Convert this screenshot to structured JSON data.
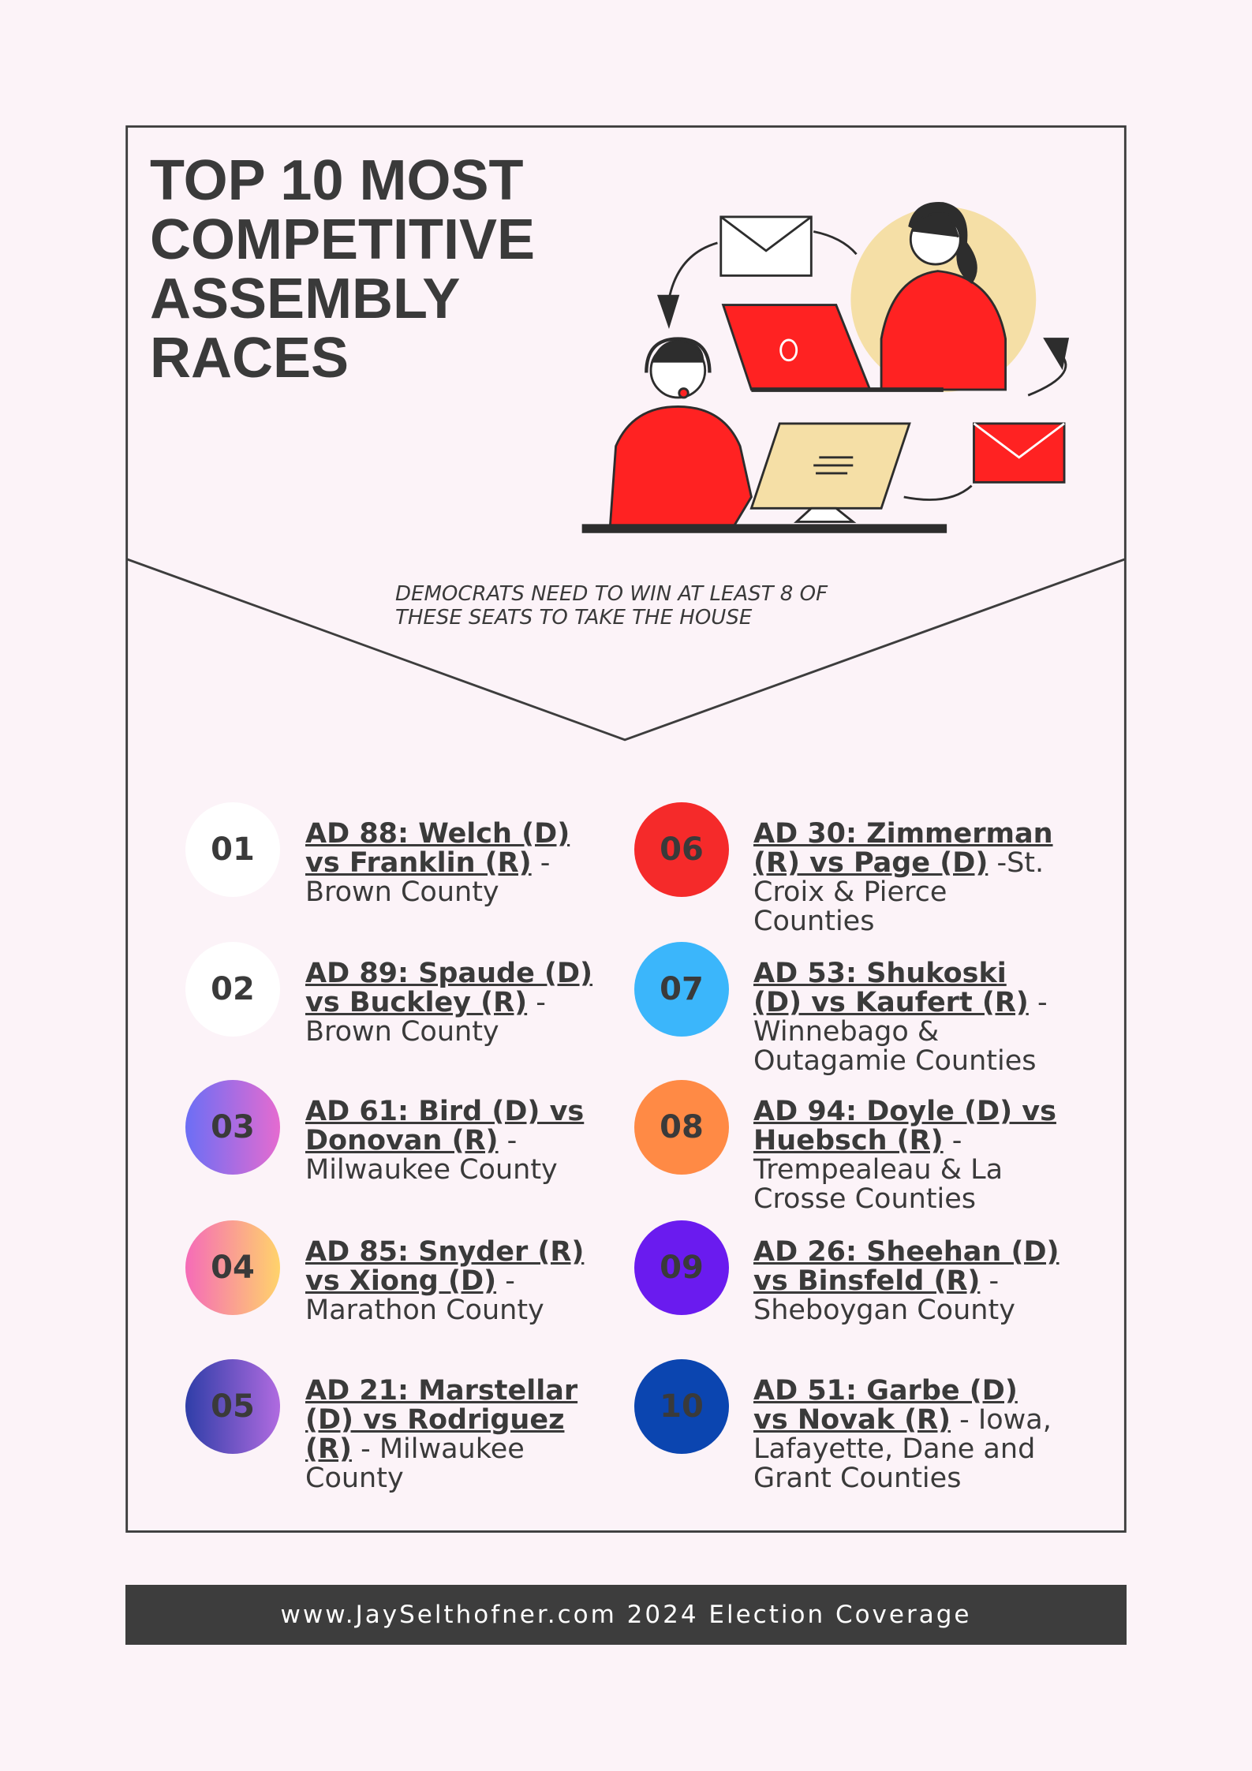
{
  "header": {
    "title": "TOP 10 MOST COMPETITIVE ASSEMBLY RACES",
    "subtitle": "DEMOCRATS NEED TO WIN AT LEAST 8 OF THESE SEATS TO TAKE THE HOUSE"
  },
  "races": [
    {
      "number": "01",
      "race": "AD 88: Welch (D) vs Franklin (R)",
      "place": " - Brown County"
    },
    {
      "number": "02",
      "race": "AD 89: Spaude (D) vs Buckley (R)",
      "place": " - Brown County"
    },
    {
      "number": "03",
      "race": "AD 61: Bird (D) vs Donovan (R)",
      "place": " - Milwaukee County"
    },
    {
      "number": "04",
      "race": "AD 85: Snyder (R) vs Xiong (D)",
      "place": " - Marathon County"
    },
    {
      "number": "05",
      "race": "AD 21: Marstellar (D) vs Rodriguez (R)",
      "place": " - Milwaukee County"
    },
    {
      "number": "06",
      "race": "AD 30: Zimmerman (R) vs Page (D)",
      "place": " -St. Croix & Pierce Counties"
    },
    {
      "number": "07",
      "race": "AD 53: Shukoski (D) vs Kaufert (R)",
      "place": " - Winnebago & Outagamie Counties"
    },
    {
      "number": "08",
      "race": "AD 94: Doyle (D) vs Huebsch (R)",
      "place": " - Trempealeau & La Crosse Counties"
    },
    {
      "number": "09",
      "race": "AD 26: Sheehan (D) vs Binsfeld (R)",
      "place": " - Sheboygan County"
    },
    {
      "number": "10",
      "race": "AD 51: Garbe (D) vs Novak (R)",
      "place": " - Iowa, Lafayette, Dane and Grant Counties"
    }
  ],
  "footer": {
    "text": "www.JaySelthofner.com 2024 Election Coverage"
  }
}
